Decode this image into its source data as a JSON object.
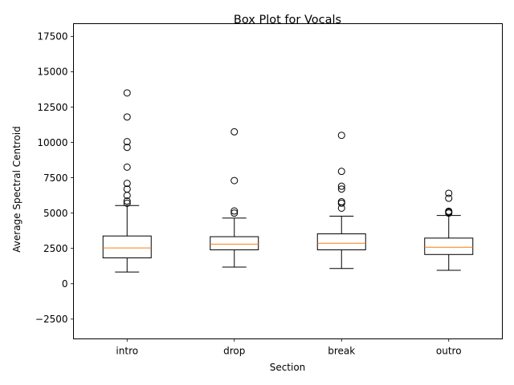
{
  "chart_data": {
    "type": "box",
    "title": "Box Plot for Vocals",
    "xlabel": "Section",
    "ylabel": "Average Spectral Centroid",
    "ylim": [
      -3900,
      18400
    ],
    "yticks": [
      -2500,
      0,
      2500,
      5000,
      7500,
      10000,
      12500,
      15000,
      17500
    ],
    "ytick_labels": [
      "−2500",
      "0",
      "2500",
      "5000",
      "7500",
      "10000",
      "12500",
      "15000",
      "17500"
    ],
    "grid": false,
    "colors": {
      "box": "#000000",
      "median": "#ff7f0e",
      "flier": "#000000"
    },
    "categories": [
      "intro",
      "drop",
      "break",
      "outro"
    ],
    "boxes": [
      {
        "category": "intro",
        "whisker_low": 830,
        "q1": 1830,
        "median": 2530,
        "q3": 3380,
        "whisker_high": 5530,
        "fliers": [
          5700,
          5850,
          6250,
          6700,
          7100,
          8250,
          9650,
          10050,
          11800,
          13500
        ]
      },
      {
        "category": "drop",
        "whisker_low": 1180,
        "q1": 2400,
        "median": 2800,
        "q3": 3330,
        "whisker_high": 4650,
        "fliers": [
          5000,
          5150,
          7300,
          10750
        ]
      },
      {
        "category": "break",
        "whisker_low": 1080,
        "q1": 2400,
        "median": 2870,
        "q3": 3530,
        "whisker_high": 4780,
        "fliers": [
          5350,
          5700,
          5800,
          6700,
          6900,
          7950,
          10500
        ]
      },
      {
        "category": "outro",
        "whisker_low": 950,
        "q1": 2070,
        "median": 2580,
        "q3": 3230,
        "whisker_high": 4830,
        "fliers": [
          5000,
          5070,
          5130,
          6050,
          6400
        ]
      }
    ]
  }
}
